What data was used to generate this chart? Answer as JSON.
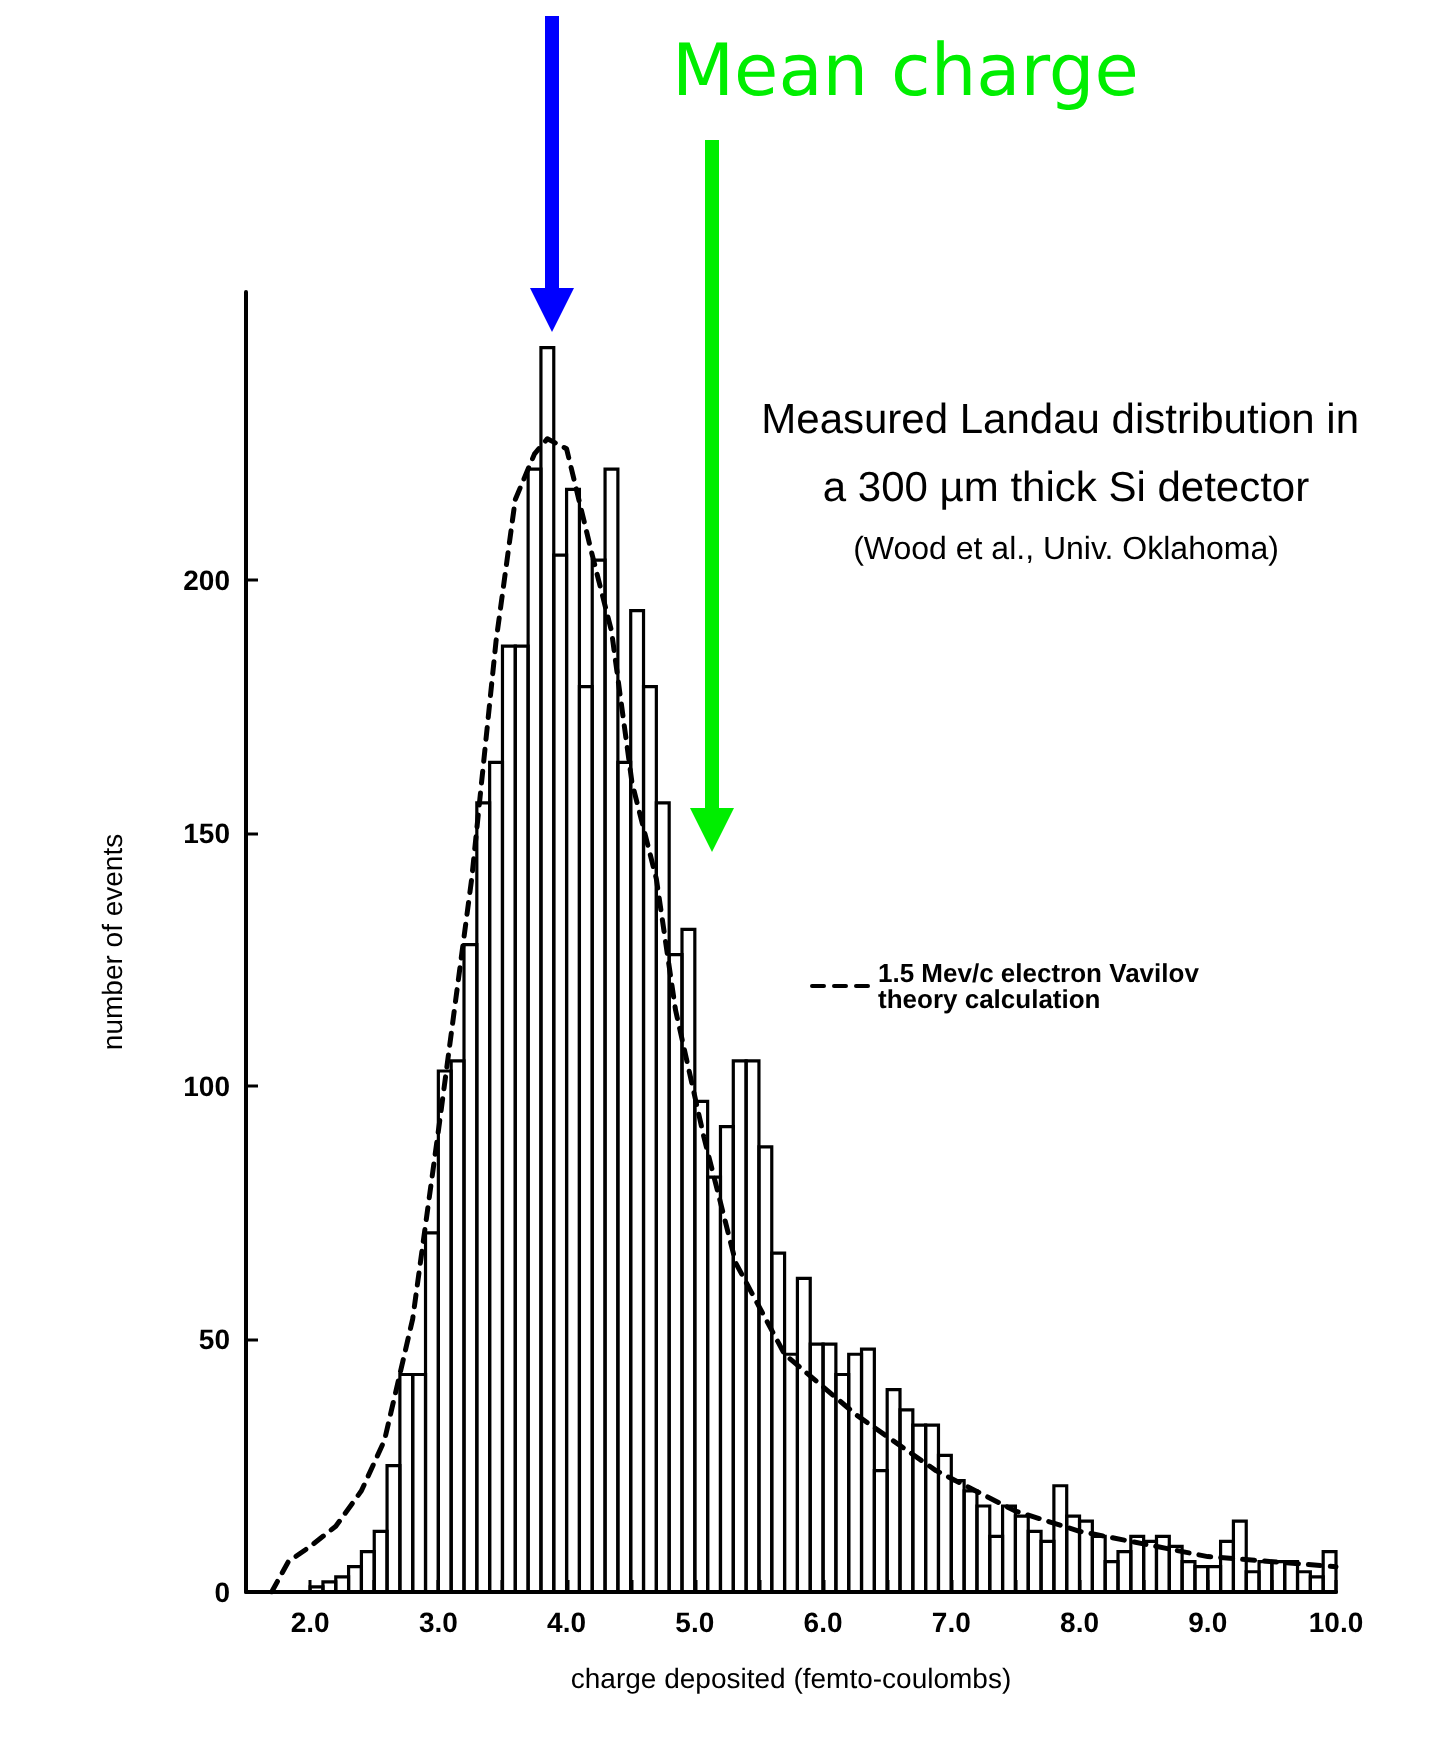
{
  "chart_data": {
    "type": "histogram",
    "title": "Measured Landau distribution in a 300 µm thick Si detector",
    "subtitle": "(Wood et al., Univ. Oklahoma)",
    "xlabel": "charge deposited (femto-coulombs)",
    "ylabel": "number of events",
    "bins": [
      2.0,
      2.1,
      2.2,
      2.3,
      2.4,
      2.5,
      2.6,
      2.7,
      2.8,
      2.9,
      3.0,
      3.1,
      3.2,
      3.3,
      3.4,
      3.5,
      3.6,
      3.7,
      3.8,
      3.9,
      4.0,
      4.1,
      4.2,
      4.3,
      4.4,
      4.5,
      4.6,
      4.7,
      4.8,
      4.9,
      5.0,
      5.1,
      5.2,
      5.3,
      5.4,
      5.5,
      5.6,
      5.7,
      5.8,
      5.9,
      6.0,
      6.1,
      6.2,
      6.3,
      6.4,
      6.5,
      6.6,
      6.7,
      6.8,
      6.9,
      7.0,
      7.1,
      7.2,
      7.3,
      7.4,
      7.5,
      7.6,
      7.7,
      7.8,
      7.9,
      8.0,
      8.1,
      8.2,
      8.3,
      8.4,
      8.5,
      8.6,
      8.7,
      8.8,
      8.9,
      9.0,
      9.1,
      9.2,
      9.3,
      9.4,
      9.5,
      9.6,
      9.7,
      9.8,
      9.9,
      10.0
    ],
    "series": [
      {
        "color": "#000000",
        "values": [
          1,
          2,
          3,
          5,
          8,
          12,
          25,
          43,
          43,
          71,
          103,
          105,
          128,
          156,
          164,
          187,
          187,
          222,
          246,
          205,
          218,
          179,
          204,
          222,
          164,
          194,
          179,
          156,
          126,
          131,
          97,
          82,
          92,
          105,
          105,
          88,
          67,
          47,
          62,
          49,
          49,
          43,
          47,
          48,
          24,
          40,
          36,
          33,
          33,
          27,
          22,
          20,
          17,
          11,
          17,
          15,
          12,
          10,
          21,
          15,
          14,
          11,
          6,
          8,
          11,
          10,
          11,
          9,
          6,
          5,
          5,
          10,
          14,
          4,
          6,
          6,
          6,
          4,
          3,
          8
        ]
      },
      {
        "type": "line",
        "name": "1.5 Mev/c electron Vavilov theory calculation",
        "color": "#000000",
        "line_style": "dashed",
        "marker": "none",
        "x": [
          1.7,
          1.83,
          2.0,
          2.2,
          2.4,
          2.58,
          2.8,
          3.01,
          3.26,
          3.45,
          3.6,
          3.75,
          3.85,
          4.0,
          4.2,
          4.35,
          4.51,
          4.7,
          4.85,
          5.07,
          5.32,
          5.7,
          6.26,
          6.88,
          7.5,
          8.0,
          9.0,
          10.0
        ],
        "values": [
          0,
          6,
          9,
          13,
          20,
          30,
          54,
          93,
          141,
          188,
          216,
          225,
          228,
          226,
          205,
          190,
          160,
          141,
          115,
          90,
          65,
          47,
          35,
          24,
          16,
          12,
          7,
          5
        ]
      }
    ],
    "xlim": [
      1.5,
      10.0
    ],
    "xticks": [
      {
        "value": 2,
        "label": "2.0"
      },
      {
        "value": 2.5,
        "label": null
      },
      {
        "value": 3,
        "label": "3.0"
      },
      {
        "value": 3.5,
        "label": null
      },
      {
        "value": 4,
        "label": "4.0"
      },
      {
        "value": 4.5,
        "label": null
      },
      {
        "value": 5,
        "label": "5.0"
      },
      {
        "value": 5.5,
        "label": null
      },
      {
        "value": 6,
        "label": "6.0"
      },
      {
        "value": 6.5,
        "label": null
      },
      {
        "value": 7,
        "label": "7.0"
      },
      {
        "value": 7.5,
        "label": null
      },
      {
        "value": 8,
        "label": "8.0"
      },
      {
        "value": 8.5,
        "label": null
      },
      {
        "value": 9,
        "label": "9.0"
      },
      {
        "value": 9.5,
        "label": null
      },
      {
        "value": 10,
        "label": "10.0"
      }
    ],
    "ylim": [
      0,
      257
    ],
    "yticks": [
      0,
      50,
      100,
      150,
      200
    ],
    "legend": "right",
    "grid": false,
    "annotations": [
      "Mean charge"
    ]
  }
}
